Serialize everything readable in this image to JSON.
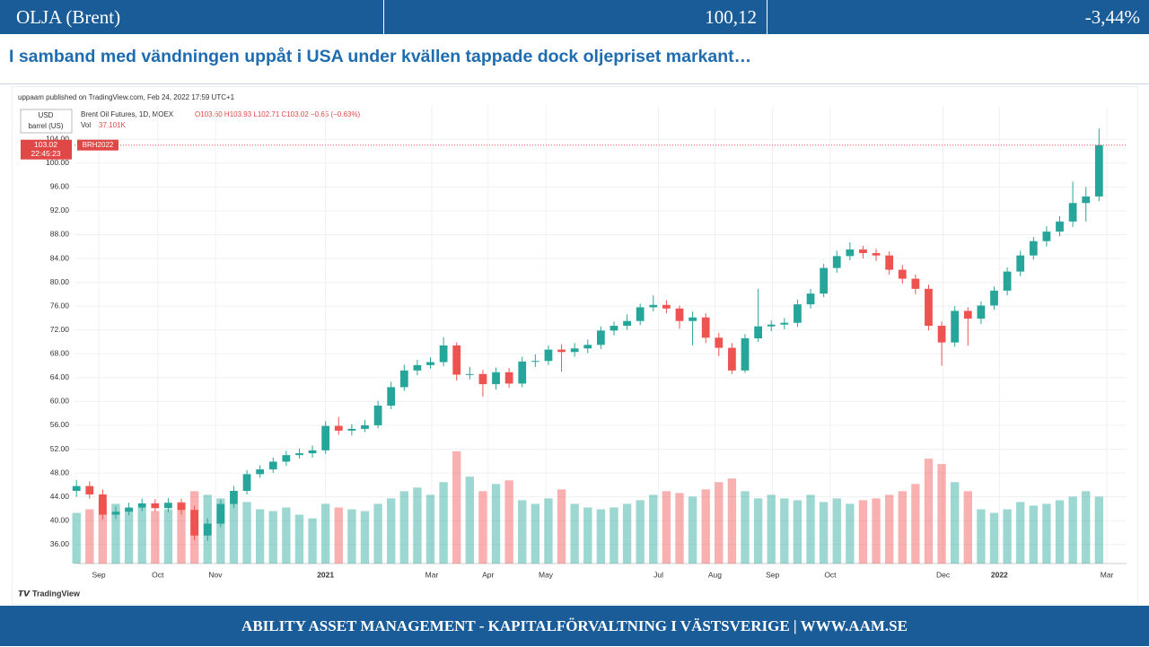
{
  "header": {
    "name": "OLJA (Brent)",
    "price": "100,12",
    "change": "-3,44%"
  },
  "headline": "I samband med vändningen uppåt i USA under kvällen tappade dock oljepriset markant…",
  "footer": "ABILITY ASSET MANAGEMENT -  KAPITALFÖRVALTNING I VÄSTSVERIGE   |   WWW.AAM.SE",
  "chart_data": {
    "type": "candlestick",
    "published": "uppaam published on TradingView.com, Feb 24, 2022 17:59 UTC+1",
    "symbol": "Brent Oil Futures, 1D, MOEX",
    "ohlc_text": "O103.60 H103.93 L102.71 C103.02 −0.65 (−0.63%)",
    "volume_caption": "Vol",
    "volume_last": "37.101K",
    "currency": "USD",
    "unit": "barrel (US)",
    "last_price": 103.02,
    "countdown": "22:45:23",
    "contract": "BRH2022",
    "brand": "TradingView",
    "up_color": "#26a69a",
    "down_color": "#ef5350",
    "grid": true,
    "open": [
      45.0,
      45.8,
      44.4,
      41.0,
      41.5,
      42.2,
      42.9,
      42.1,
      43.0,
      41.8,
      37.5,
      39.5,
      42.8,
      45.0,
      47.8,
      48.6,
      49.9,
      51.0,
      51.3,
      51.8,
      55.9,
      55.1,
      55.4,
      56.0,
      59.3,
      62.4,
      65.2,
      66.1,
      66.6,
      69.4,
      64.5,
      64.6,
      62.9,
      64.9,
      63.0,
      66.7,
      66.8,
      68.7,
      68.3,
      68.9,
      69.5,
      71.9,
      72.7,
      73.5,
      75.8,
      76.2,
      75.6,
      73.5,
      74.1,
      70.7,
      69.0,
      65.2,
      70.6,
      72.6,
      72.9,
      73.2,
      76.3,
      78.1,
      82.4,
      84.4,
      85.5,
      84.9,
      84.5,
      82.1,
      80.6,
      78.9,
      72.7,
      69.9,
      75.2,
      73.9,
      76.1,
      78.6,
      81.8,
      84.5,
      86.9,
      88.5,
      90.2,
      93.3,
      94.4
    ],
    "high": [
      46.8,
      46.6,
      45.2,
      42.4,
      43.0,
      43.7,
      43.6,
      43.8,
      43.7,
      42.5,
      40.4,
      43.5,
      45.8,
      48.5,
      49.3,
      50.6,
      51.7,
      52.1,
      52.6,
      56.7,
      57.4,
      56.2,
      56.9,
      60.1,
      63.3,
      66.2,
      67.0,
      67.4,
      70.8,
      69.9,
      65.8,
      65.3,
      65.7,
      65.6,
      67.5,
      67.9,
      69.4,
      69.6,
      69.8,
      70.4,
      72.6,
      73.4,
      74.6,
      76.4,
      77.8,
      77.0,
      76.1,
      75.1,
      74.8,
      71.5,
      69.8,
      71.3,
      78.9,
      73.6,
      74.0,
      77.1,
      78.9,
      83.1,
      85.3,
      86.7,
      86.1,
      85.6,
      85.2,
      82.9,
      81.3,
      79.6,
      73.4,
      76.0,
      75.8,
      76.8,
      79.3,
      82.5,
      85.3,
      87.6,
      89.4,
      91.1,
      96.9,
      96.0,
      105.8
    ],
    "low": [
      44.0,
      43.7,
      40.2,
      40.3,
      40.9,
      41.6,
      41.5,
      41.4,
      41.0,
      36.7,
      36.6,
      38.9,
      42.1,
      44.4,
      47.2,
      48.0,
      49.2,
      50.4,
      50.6,
      51.2,
      54.4,
      54.3,
      54.9,
      55.5,
      58.7,
      61.8,
      64.4,
      65.5,
      65.9,
      63.5,
      63.7,
      60.8,
      62.0,
      62.3,
      62.4,
      65.8,
      66.1,
      65.0,
      67.5,
      68.1,
      68.8,
      71.1,
      72.0,
      72.8,
      75.1,
      74.8,
      72.2,
      69.4,
      69.8,
      67.6,
      64.6,
      64.8,
      70.0,
      71.8,
      72.1,
      72.5,
      75.6,
      77.5,
      81.6,
      83.7,
      84.0,
      83.6,
      81.3,
      79.8,
      78.0,
      71.9,
      66.0,
      69.2,
      69.4,
      73.0,
      75.4,
      77.8,
      81.0,
      83.8,
      86.0,
      87.7,
      89.3,
      90.2,
      93.6
    ],
    "close": [
      45.8,
      44.4,
      41.0,
      41.5,
      42.2,
      42.9,
      42.1,
      43.0,
      41.8,
      37.5,
      39.5,
      42.8,
      45.0,
      47.8,
      48.6,
      49.9,
      51.0,
      51.3,
      51.8,
      55.9,
      55.1,
      55.4,
      56.0,
      59.3,
      62.4,
      65.2,
      66.1,
      66.6,
      69.4,
      64.5,
      64.6,
      62.9,
      64.9,
      63.0,
      66.7,
      66.8,
      68.7,
      68.3,
      68.9,
      69.5,
      71.9,
      72.7,
      73.5,
      75.8,
      76.2,
      75.6,
      73.5,
      74.1,
      70.7,
      69.0,
      65.2,
      70.6,
      72.6,
      72.9,
      73.2,
      76.3,
      78.1,
      82.4,
      84.4,
      85.5,
      84.9,
      84.5,
      82.1,
      80.6,
      78.9,
      72.7,
      69.9,
      75.2,
      73.9,
      76.1,
      78.6,
      81.8,
      84.5,
      86.9,
      88.5,
      90.2,
      93.3,
      94.4,
      103.02
    ],
    "volume": [
      28,
      30,
      35,
      33,
      30,
      31,
      29,
      30,
      34,
      40,
      38,
      36,
      33,
      34,
      30,
      29,
      31,
      27,
      25,
      33,
      31,
      30,
      29,
      33,
      36,
      40,
      42,
      38,
      45,
      62,
      48,
      40,
      44,
      46,
      35,
      33,
      36,
      41,
      33,
      31,
      30,
      31,
      33,
      35,
      38,
      40,
      39,
      37,
      41,
      45,
      47,
      40,
      36,
      38,
      36,
      35,
      38,
      34,
      36,
      33,
      35,
      36,
      38,
      40,
      44,
      58,
      55,
      45,
      40,
      30,
      28,
      30,
      34,
      32,
      33,
      35,
      37,
      40,
      37
    ],
    "xlim": [
      -0.15,
      80.1
    ],
    "xticks": [
      {
        "value": 1.7,
        "label": "Sep"
      },
      {
        "value": 6.2,
        "label": "Oct"
      },
      {
        "value": 10.6,
        "label": "Nov"
      },
      {
        "value": 19.0,
        "label": "2021"
      },
      {
        "value": 27.1,
        "label": "Mar"
      },
      {
        "value": 31.4,
        "label": "Apr"
      },
      {
        "value": 35.8,
        "label": "May"
      },
      {
        "value": 44.4,
        "label": "Jul"
      },
      {
        "value": 48.7,
        "label": "Aug"
      },
      {
        "value": 53.1,
        "label": "Sep"
      },
      {
        "value": 57.5,
        "label": "Oct"
      },
      {
        "value": 66.1,
        "label": "Dec"
      },
      {
        "value": 70.4,
        "label": "2022"
      },
      {
        "value": 78.6,
        "label": "Mar"
      }
    ],
    "ylim": [
      32.8,
      109.6
    ],
    "yticks": [
      {
        "value": 36,
        "label": "36.00"
      },
      {
        "value": 40,
        "label": "40.00"
      },
      {
        "value": 44,
        "label": "44.00"
      },
      {
        "value": 48,
        "label": "48.00"
      },
      {
        "value": 52,
        "label": "52.00"
      },
      {
        "value": 56,
        "label": "56.00"
      },
      {
        "value": 60,
        "label": "60.00"
      },
      {
        "value": 64,
        "label": "64.00"
      },
      {
        "value": 68,
        "label": "68.00"
      },
      {
        "value": 72,
        "label": "72.00"
      },
      {
        "value": 76,
        "label": "76.00"
      },
      {
        "value": 80,
        "label": "80.00"
      },
      {
        "value": 84,
        "label": "84.00"
      },
      {
        "value": 88,
        "label": "88.00"
      },
      {
        "value": 92,
        "label": "92.00"
      },
      {
        "value": 96,
        "label": "96.00"
      },
      {
        "value": 100,
        "label": "100.00"
      },
      {
        "value": 104,
        "label": "104.00"
      }
    ]
  }
}
